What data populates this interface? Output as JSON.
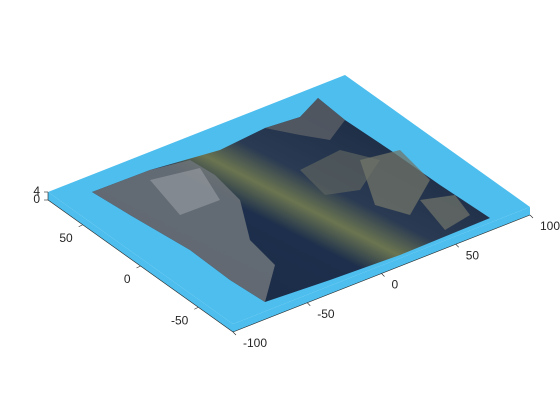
{
  "chart_data": {
    "type": "surface",
    "xlim": [
      -100,
      100
    ],
    "xticks": [
      -100,
      -50,
      0,
      50,
      100
    ],
    "ylim": [
      -80,
      80
    ],
    "yticks": [
      -50,
      0,
      50
    ],
    "zlim": [
      0,
      4
    ],
    "zticks": [
      0,
      4
    ],
    "color": "#4dbeee"
  }
}
